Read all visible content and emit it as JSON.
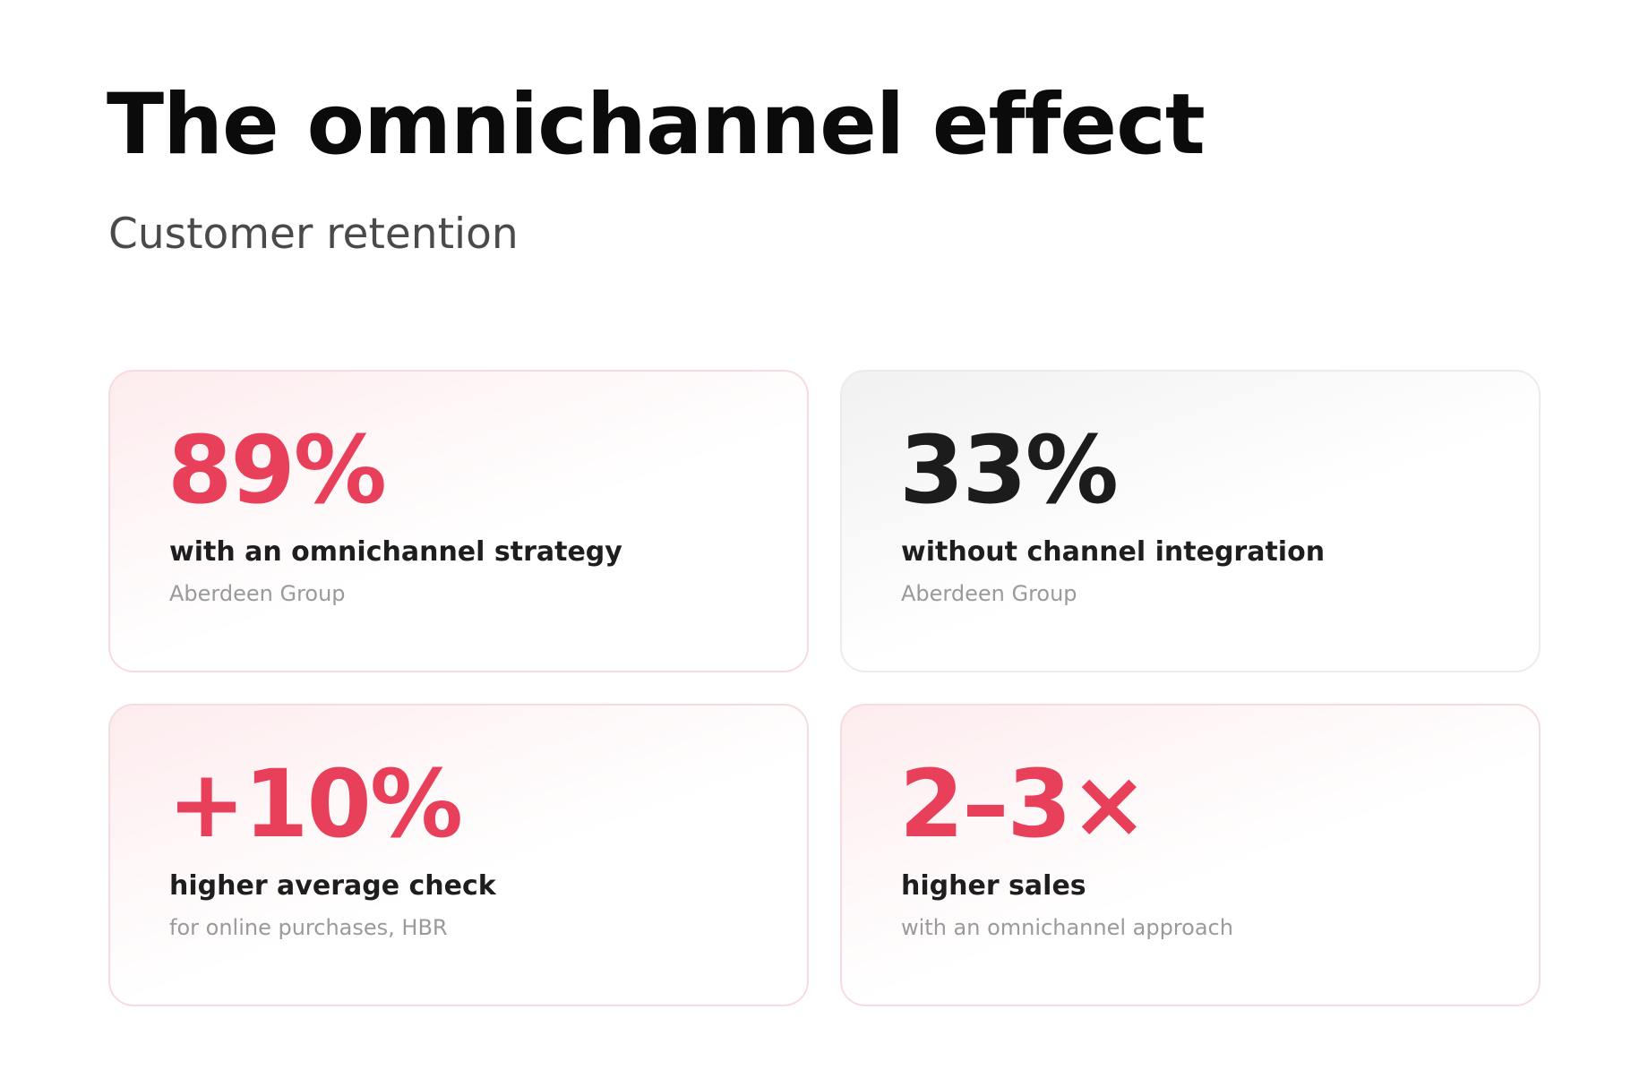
{
  "header": {
    "title": "The omnichannel effect",
    "subtitle": "Customer retention"
  },
  "cards": [
    {
      "value": "89%",
      "label": "with an omnichannel strategy",
      "source": "Aberdeen Group",
      "color": "#e8405a"
    },
    {
      "value": "33%",
      "label": "without channel integration",
      "source": "Aberdeen Group",
      "color": "#1c1c1c"
    },
    {
      "value": "+10%",
      "label": "higher average check",
      "source": "for online purchases, HBR",
      "color": "#e8405a"
    },
    {
      "value": "2–3×",
      "label": "higher sales",
      "source": "with an omnichannel approach",
      "color": "#e8405a"
    }
  ]
}
